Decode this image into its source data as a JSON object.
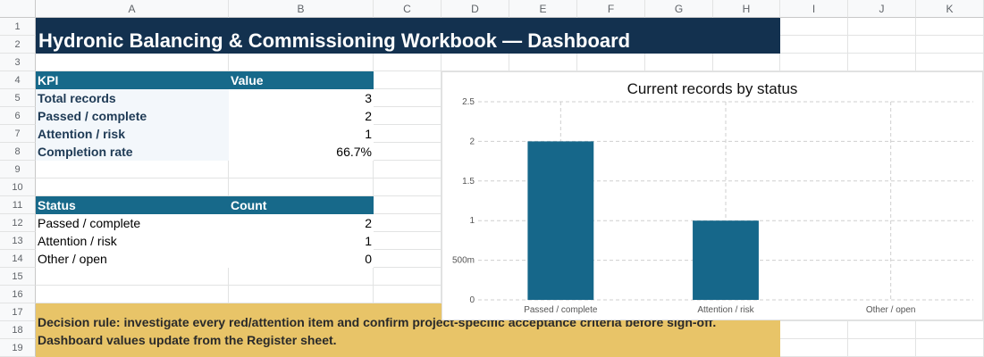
{
  "columns": [
    "A",
    "B",
    "C",
    "D",
    "E",
    "F",
    "G",
    "H",
    "I",
    "J",
    "K"
  ],
  "rows": [
    "1",
    "2",
    "3",
    "4",
    "5",
    "6",
    "7",
    "8",
    "9",
    "10",
    "11",
    "12",
    "13",
    "14",
    "15",
    "16",
    "17",
    "18",
    "19"
  ],
  "title": "Hydronic Balancing & Commissioning Workbook — Dashboard",
  "kpi": {
    "header_label": "KPI",
    "header_value": "Value",
    "rows": [
      {
        "label": "Total records",
        "value": "3"
      },
      {
        "label": "Passed / complete",
        "value": "2"
      },
      {
        "label": "Attention / risk",
        "value": "1"
      },
      {
        "label": "Completion rate",
        "value": "66.7%"
      }
    ]
  },
  "status": {
    "header_label": "Status",
    "header_value": "Count",
    "rows": [
      {
        "label": "Passed / complete",
        "value": "2"
      },
      {
        "label": "Attention / risk",
        "value": "1"
      },
      {
        "label": "Other / open",
        "value": "0"
      }
    ]
  },
  "note": {
    "line1": "Decision rule: investigate every red/attention item and confirm project-specific acceptance criteria before sign-off.",
    "line2": "Dashboard values update from the Register sheet."
  },
  "colors": {
    "title_bg": "#13314f",
    "header_teal": "#17698a",
    "bar": "#16678a",
    "note_bg": "#e8c468"
  },
  "chart_data": {
    "type": "bar",
    "title": "Current records by status",
    "categories": [
      "Passed / complete",
      "Attention / risk",
      "Other / open"
    ],
    "values": [
      2,
      1,
      0
    ],
    "ylim": [
      0,
      2.5
    ],
    "yticks": [
      0,
      0.5,
      1,
      1.5,
      2,
      2.5
    ],
    "ytick_labels": [
      "0",
      "500m",
      "1",
      "1.5",
      "2",
      "2.5"
    ],
    "grid": true,
    "xlabel": "",
    "ylabel": ""
  }
}
